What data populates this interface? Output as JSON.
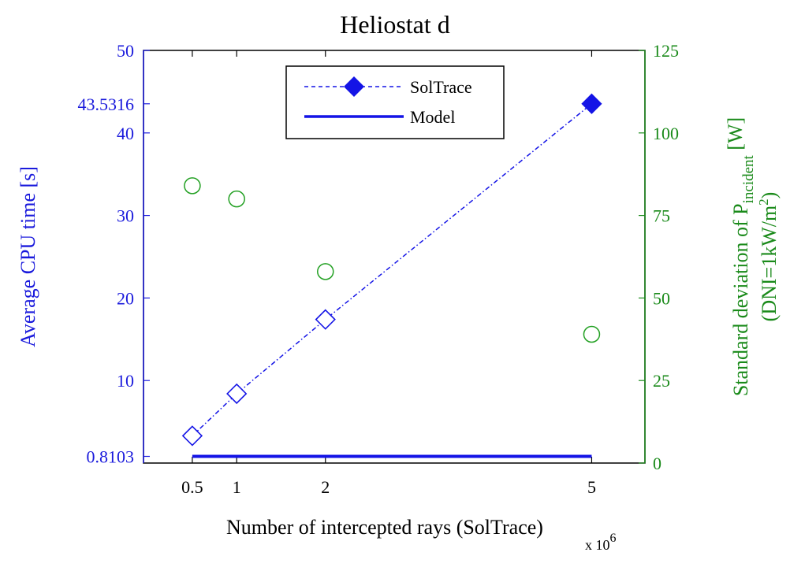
{
  "chart_data": {
    "type": "line",
    "title": "Heliostat d",
    "xlabel": "Number of intercepted rays (SolTrace)",
    "xlabel_multiplier": "x 10",
    "xlabel_multiplier_exp": "6",
    "x_ticks": [
      "0.5",
      "1",
      "2",
      "5"
    ],
    "x_tick_values": [
      0.5,
      1,
      2,
      5
    ],
    "xlim": [
      -0.05,
      5.6
    ],
    "ylabel_left": "Average CPU time [s]",
    "ylim_left": [
      0,
      50
    ],
    "y_left_ticks": [
      "0.8103",
      "10",
      "20",
      "30",
      "40",
      "43.5316",
      "50"
    ],
    "y_left_tick_values": [
      0.8103,
      10,
      20,
      30,
      40,
      43.5316,
      50
    ],
    "ylabel_right_line1": "Standard deviation of P",
    "ylabel_right_sub": "incident",
    "ylabel_right_unit": " [W]",
    "ylabel_right_line2": "(DNI=1kW/m",
    "ylabel_right_line2_sup": "2",
    "ylabel_right_line2_end": ")",
    "ylim_right": [
      0,
      125
    ],
    "y_right_ticks": [
      "0",
      "25",
      "50",
      "75",
      "100",
      "125"
    ],
    "y_right_tick_values": [
      0,
      25,
      50,
      75,
      100,
      125
    ],
    "legend_position": "top-center",
    "legend": [
      "SolTrace",
      "Model"
    ],
    "series": [
      {
        "name": "SolTrace",
        "axis": "left",
        "style": "dash-dot line with hollow diamonds, last marker filled",
        "x": [
          0.5,
          1,
          2,
          5
        ],
        "y": [
          3.3,
          8.4,
          17.4,
          43.5316
        ]
      },
      {
        "name": "Model",
        "axis": "left",
        "style": "solid line",
        "x": [
          0.5,
          5
        ],
        "y": [
          0.8103,
          0.8103
        ]
      },
      {
        "axis": "right",
        "style": "hollow circles",
        "x": [
          0.5,
          1,
          2,
          5
        ],
        "y": [
          84,
          80,
          58,
          39
        ]
      }
    ],
    "colors": {
      "left_axis": "#1a1adc",
      "right_axis": "#1a8a1a",
      "soltrace": "#1414e6",
      "model": "#1414e6",
      "circles": "#22a022"
    }
  }
}
